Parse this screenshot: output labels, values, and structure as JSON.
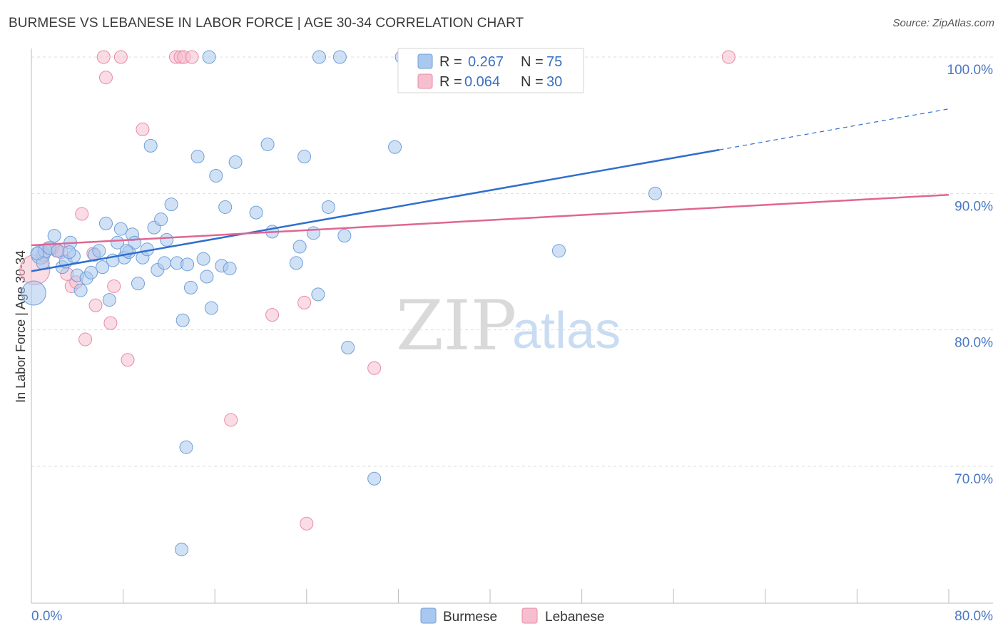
{
  "header": {
    "title": "BURMESE VS LEBANESE IN LABOR FORCE | AGE 30-34 CORRELATION CHART",
    "source": "Source: ZipAtlas.com"
  },
  "watermark": {
    "zip": "ZIP",
    "atlas": "atlas"
  },
  "legend": {
    "items": [
      {
        "r_label": "R =",
        "r_value": "0.267",
        "n_label": "N =",
        "n_value": "75"
      },
      {
        "r_label": "R =",
        "r_value": "0.064",
        "n_label": "N =",
        "n_value": "30"
      }
    ]
  },
  "bottom_legend": {
    "items": [
      "Burmese",
      "Lebanese"
    ]
  },
  "colors": {
    "burmese_fill": "#a9c8ef",
    "burmese_stroke": "#6f9fd8",
    "burmese_line": "#2f6fcc",
    "lebanese_fill": "#f6bfd0",
    "lebanese_stroke": "#e88aa8",
    "lebanese_line": "#e06692",
    "grid": "#dddddd",
    "tick_label": "#4a78c2"
  },
  "chart_data": {
    "type": "scatter",
    "title": "BURMESE VS LEBANESE IN LABOR FORCE | AGE 30-34 CORRELATION CHART",
    "xlabel": "",
    "ylabel": "In Labor Force | Age 30-34",
    "xlim": [
      0,
      80
    ],
    "ylim": [
      61,
      102
    ],
    "x_tick_labels": [
      "0.0%",
      "80.0%"
    ],
    "y_ticks": [
      70,
      80,
      90,
      100
    ],
    "y_tick_labels": [
      "70.0%",
      "80.0%",
      "90.0%",
      "100.0%"
    ],
    "grid": true,
    "legend_position": "top-center",
    "series": [
      {
        "name": "Burmese",
        "r": 0.267,
        "n": 75,
        "trend": {
          "x0": 0,
          "y0": 84.3,
          "x1": 60,
          "y1": 93.2,
          "dashed_to_x": 80,
          "dashed_to_y": 96.2
        },
        "points": [
          [
            0.2,
            82.7,
            18
          ],
          [
            0.8,
            85.5,
            14
          ],
          [
            1.2,
            85.8,
            11
          ],
          [
            1.6,
            86.0,
            10
          ],
          [
            2.0,
            86.9,
            10
          ],
          [
            2.3,
            85.8,
            10
          ],
          [
            2.7,
            84.6,
            10
          ],
          [
            3.0,
            85.0,
            10
          ],
          [
            3.4,
            86.4,
            10
          ],
          [
            3.7,
            85.4,
            10
          ],
          [
            4.0,
            84.0,
            10
          ],
          [
            4.3,
            82.9,
            10
          ],
          [
            4.8,
            83.8,
            10
          ],
          [
            5.2,
            84.2,
            10
          ],
          [
            5.5,
            85.5,
            10
          ],
          [
            5.9,
            85.8,
            10
          ],
          [
            6.2,
            84.6,
            10
          ],
          [
            6.5,
            87.8,
            10
          ],
          [
            6.8,
            82.2,
            10
          ],
          [
            7.1,
            85.1,
            10
          ],
          [
            7.5,
            86.4,
            10
          ],
          [
            7.8,
            87.4,
            10
          ],
          [
            8.1,
            85.3,
            10
          ],
          [
            8.5,
            85.7,
            10
          ],
          [
            8.8,
            87.0,
            10
          ],
          [
            9.0,
            86.4,
            10
          ],
          [
            9.3,
            83.4,
            10
          ],
          [
            9.7,
            85.3,
            10
          ],
          [
            10.1,
            85.9,
            10
          ],
          [
            10.4,
            93.5,
            10
          ],
          [
            10.7,
            87.5,
            10
          ],
          [
            11.0,
            84.4,
            10
          ],
          [
            11.3,
            88.1,
            10
          ],
          [
            11.6,
            84.9,
            10
          ],
          [
            11.8,
            86.6,
            10
          ],
          [
            12.2,
            89.2,
            10
          ],
          [
            12.7,
            84.9,
            10
          ],
          [
            13.2,
            80.7,
            10
          ],
          [
            13.6,
            84.8,
            10
          ],
          [
            13.9,
            83.1,
            10
          ],
          [
            14.5,
            92.7,
            10
          ],
          [
            15.0,
            85.2,
            10
          ],
          [
            15.3,
            83.9,
            10
          ],
          [
            15.7,
            81.6,
            10
          ],
          [
            16.1,
            91.3,
            10
          ],
          [
            16.6,
            84.7,
            10
          ],
          [
            16.9,
            89.0,
            10
          ],
          [
            17.3,
            84.5,
            10
          ],
          [
            17.8,
            92.3,
            10
          ],
          [
            19.6,
            88.6,
            10
          ],
          [
            20.6,
            93.6,
            10
          ],
          [
            21.0,
            87.2,
            10
          ],
          [
            23.1,
            84.9,
            10
          ],
          [
            23.4,
            86.1,
            10
          ],
          [
            23.8,
            92.7,
            10
          ],
          [
            24.6,
            87.1,
            10
          ],
          [
            25.0,
            82.6,
            10
          ],
          [
            25.9,
            89.0,
            10
          ],
          [
            27.3,
            86.9,
            10
          ],
          [
            27.6,
            78.7,
            10
          ],
          [
            29.9,
            69.1,
            10
          ],
          [
            31.7,
            93.4,
            10
          ],
          [
            46.0,
            85.8,
            10
          ],
          [
            54.4,
            90.0,
            10
          ],
          [
            13.5,
            71.4,
            10
          ],
          [
            13.1,
            63.9,
            10
          ],
          [
            15.5,
            100.0,
            10
          ],
          [
            25.1,
            100.0,
            10
          ],
          [
            26.9,
            100.0,
            10
          ],
          [
            32.3,
            100.0,
            10
          ],
          [
            37.6,
            100.0,
            10
          ],
          [
            1.0,
            84.9,
            10
          ],
          [
            3.3,
            85.7,
            10
          ],
          [
            8.3,
            85.8,
            10
          ],
          [
            0.5,
            85.6,
            10
          ]
        ]
      },
      {
        "name": "Lebanese",
        "r": 0.064,
        "n": 30,
        "trend": {
          "x0": 0,
          "y0": 86.2,
          "x1": 80,
          "y1": 89.9
        },
        "points": [
          [
            0.3,
            84.4,
            22
          ],
          [
            1.0,
            85.5,
            10
          ],
          [
            1.5,
            86.0,
            10
          ],
          [
            2.2,
            85.8,
            10
          ],
          [
            2.6,
            85.7,
            10
          ],
          [
            3.1,
            84.1,
            10
          ],
          [
            3.5,
            83.2,
            10
          ],
          [
            3.9,
            83.5,
            10
          ],
          [
            4.4,
            88.5,
            10
          ],
          [
            4.7,
            79.3,
            10
          ],
          [
            5.4,
            85.6,
            10
          ],
          [
            5.6,
            81.8,
            10
          ],
          [
            6.3,
            100.0,
            10
          ],
          [
            6.5,
            98.5,
            10
          ],
          [
            6.9,
            80.5,
            10
          ],
          [
            7.2,
            83.2,
            10
          ],
          [
            7.8,
            100.0,
            10
          ],
          [
            8.4,
            77.8,
            10
          ],
          [
            9.7,
            94.7,
            10
          ],
          [
            12.6,
            100.0,
            10
          ],
          [
            13.0,
            100.0,
            10
          ],
          [
            13.3,
            100.0,
            10
          ],
          [
            14.0,
            100.0,
            10
          ],
          [
            17.4,
            73.4,
            10
          ],
          [
            21.0,
            81.1,
            10
          ],
          [
            23.8,
            82.0,
            10
          ],
          [
            24.0,
            65.8,
            10
          ],
          [
            29.9,
            77.2,
            10
          ],
          [
            60.8,
            100.0,
            10
          ],
          [
            1.8,
            86.0,
            10
          ]
        ]
      }
    ]
  }
}
